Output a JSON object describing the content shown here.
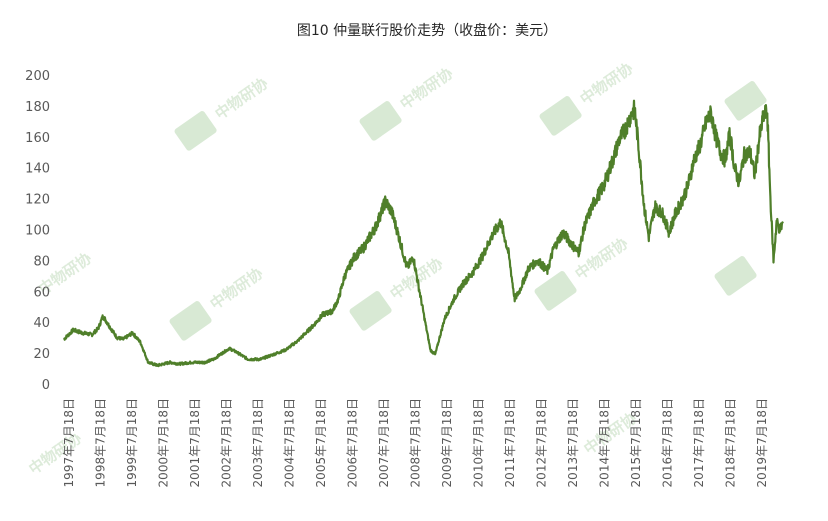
{
  "chart_data": {
    "type": "line",
    "title": "图10 仲量联行股价走势（收盘价：美元）",
    "xlabel": "",
    "ylabel": "",
    "ylim": [
      0,
      200
    ],
    "yticks": [
      "0",
      "20",
      "40",
      "60",
      "80",
      "100",
      "120",
      "140",
      "160",
      "180",
      "200"
    ],
    "xticks": [
      "1997年7月18日",
      "1998年7月18日",
      "1999年7月18日",
      "2000年7月18日",
      "2001年7月18日",
      "2002年7月18日",
      "2003年7月18日",
      "2004年7月18日",
      "2005年7月18日",
      "2006年7月18日",
      "2007年7月18日",
      "2008年7月18日",
      "2009年7月18日",
      "2010年7月18日",
      "2011年7月18日",
      "2012年7月18日",
      "2013年7月18日",
      "2014年7月18日",
      "2015年7月18日",
      "2016年7月18日",
      "2017年7月18日",
      "2018年7月18日",
      "2019年7月18日"
    ],
    "grid": false,
    "legend": "none",
    "series_color": "#4f7f2a",
    "series": [
      {
        "x": [
          1997.3,
          1997.6,
          1997.9,
          1998.2,
          1998.4,
          1998.55,
          1998.8,
          1999.0,
          1999.2,
          1999.5,
          1999.75,
          2000.0,
          2000.3,
          2000.7,
          2001.0,
          2001.4,
          2001.8,
          2002.1,
          2002.3,
          2002.6,
          2002.8,
          2003.2,
          2003.6,
          2004.0,
          2004.4,
          2004.8,
          2005.0,
          2005.3,
          2005.6,
          2005.9,
          2006.1,
          2006.3,
          2006.6,
          2006.9,
          2007.1,
          2007.3,
          2007.45,
          2007.6,
          2007.8,
          2008.0,
          2008.3,
          2008.5,
          2008.7,
          2008.9,
          2009.05,
          2009.2,
          2009.5,
          2009.8,
          2010.1,
          2010.4,
          2010.7,
          2011.0,
          2011.3,
          2011.55,
          2011.75,
          2011.9,
          2012.2,
          2012.5,
          2012.8,
          2013.0,
          2013.3,
          2013.6,
          2013.8,
          2014.0,
          2014.3,
          2014.6,
          2014.9,
          2015.1,
          2015.3,
          2015.5,
          2015.6,
          2015.75,
          2015.9,
          2016.05,
          2016.25,
          2016.5,
          2016.7,
          2016.9,
          2017.1,
          2017.3,
          2017.5,
          2017.7,
          2017.9,
          2018.05,
          2018.2,
          2018.35,
          2018.5,
          2018.65,
          2018.8,
          2018.95,
          2019.1,
          2019.3,
          2019.45,
          2019.6,
          2019.75,
          2019.85,
          2019.95,
          2020.05,
          2020.15,
          2020.25,
          2020.35
        ],
        "y": [
          29,
          35,
          33,
          32,
          36,
          44,
          36,
          30,
          29,
          33,
          27,
          14,
          12,
          14,
          13,
          14,
          14,
          16,
          19,
          23,
          21,
          16,
          16,
          19,
          22,
          28,
          32,
          38,
          45,
          47,
          55,
          70,
          82,
          88,
          95,
          102,
          110,
          118,
          112,
          98,
          75,
          82,
          60,
          38,
          22,
          19,
          42,
          55,
          65,
          72,
          82,
          95,
          105,
          85,
          55,
          60,
          75,
          80,
          73,
          88,
          98,
          90,
          85,
          103,
          118,
          128,
          145,
          158,
          165,
          175,
          178,
          148,
          115,
          95,
          115,
          110,
          98,
          110,
          118,
          128,
          145,
          155,
          170,
          175,
          160,
          150,
          145,
          162,
          140,
          130,
          148,
          150,
          135,
          160,
          175,
          175,
          120,
          80,
          105,
          100,
          104
        ]
      }
    ]
  }
}
